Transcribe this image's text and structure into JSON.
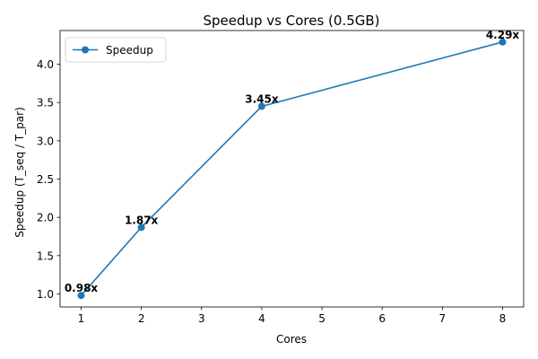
{
  "chart_data": {
    "type": "line",
    "title": "Speedup vs Cores (0.5GB)",
    "xlabel": "Cores",
    "ylabel": "Speedup (T_seq / T_par)",
    "xlim": [
      0.65,
      8.35
    ],
    "ylim": [
      0.83,
      4.44
    ],
    "xticks": [
      1,
      2,
      3,
      4,
      5,
      6,
      7,
      8
    ],
    "xtick_labels": [
      "1",
      "2",
      "3",
      "4",
      "5",
      "6",
      "7",
      "8"
    ],
    "yticks": [
      1.0,
      1.5,
      2.0,
      2.5,
      3.0,
      3.5,
      4.0
    ],
    "ytick_labels": [
      "1.0",
      "1.5",
      "2.0",
      "2.5",
      "3.0",
      "3.5",
      "4.0"
    ],
    "grid": false,
    "legend": {
      "placement": "top-left"
    },
    "series": [
      {
        "name": "Speedup",
        "color": "#1f77b4",
        "marker": "circle",
        "x": [
          1,
          2,
          4,
          8
        ],
        "y": [
          0.98,
          1.87,
          3.45,
          4.29
        ],
        "labels": [
          "0.98x",
          "1.87x",
          "3.45x",
          "4.29x"
        ]
      }
    ]
  }
}
